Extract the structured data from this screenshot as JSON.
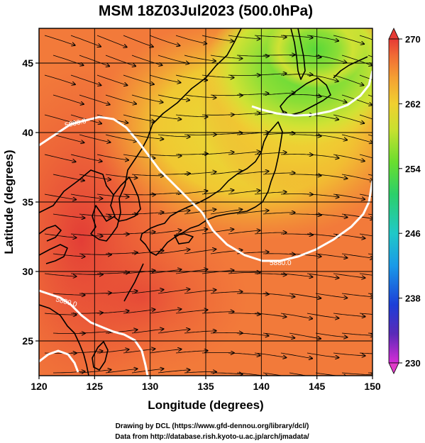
{
  "title": "MSM 18Z03Jul2023 (500.0hPa)",
  "credits": {
    "line1": "Drawing by DCL (https://www.gfd-dennou.org/library/dcl/)",
    "line2": "Data from http://database.rish.kyoto-u.ac.jp/arch/jmadata/"
  },
  "map": {
    "xlabel": "Longitude (degrees)",
    "ylabel": "Latitude  (degrees)",
    "lon_range": [
      120,
      150
    ],
    "lat_range": [
      22.5,
      47.5
    ],
    "lon_ticks": [
      "120",
      "125",
      "130",
      "135",
      "140",
      "145",
      "150"
    ],
    "lat_ticks": [
      "25",
      "30",
      "35",
      "40",
      "45"
    ],
    "grid": true,
    "contour_level_label": "5880.0",
    "contour_labels": [
      "5880.0",
      "5880.0",
      "5880.0"
    ],
    "field_colors": {
      "hot": "#e8453a",
      "warm": "#f2713a",
      "mid": "#f59a3c",
      "yellow": "#e5e335",
      "green": "#7ee03a",
      "coast": "#000000",
      "contour": "#ffffff"
    }
  },
  "colorbar": {
    "min": 230,
    "max": 270,
    "ticks": [
      "270",
      "262",
      "254",
      "246",
      "238",
      "230"
    ],
    "tick_values": [
      270,
      262,
      254,
      246,
      238,
      230
    ],
    "stops": [
      "#d62cd6",
      "#5a2ab8",
      "#1c3fd8",
      "#1a9ae8",
      "#20c8c8",
      "#2bd06a",
      "#6ade2e",
      "#c8e030",
      "#f0d030",
      "#f5a032",
      "#f06a35",
      "#e63a35"
    ]
  }
}
